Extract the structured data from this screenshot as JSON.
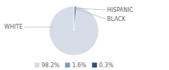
{
  "chart_data": {
    "type": "pie",
    "categories": [
      "WHITE",
      "HISPANIC",
      "BLACK"
    ],
    "values": [
      98.2,
      1.6,
      0.3
    ],
    "value_labels": [
      "98.2%",
      "1.6%",
      "0.3%"
    ],
    "colors": [
      "#d6dde8",
      "#7b9db8",
      "#2e506e"
    ],
    "legend": "bottom"
  }
}
